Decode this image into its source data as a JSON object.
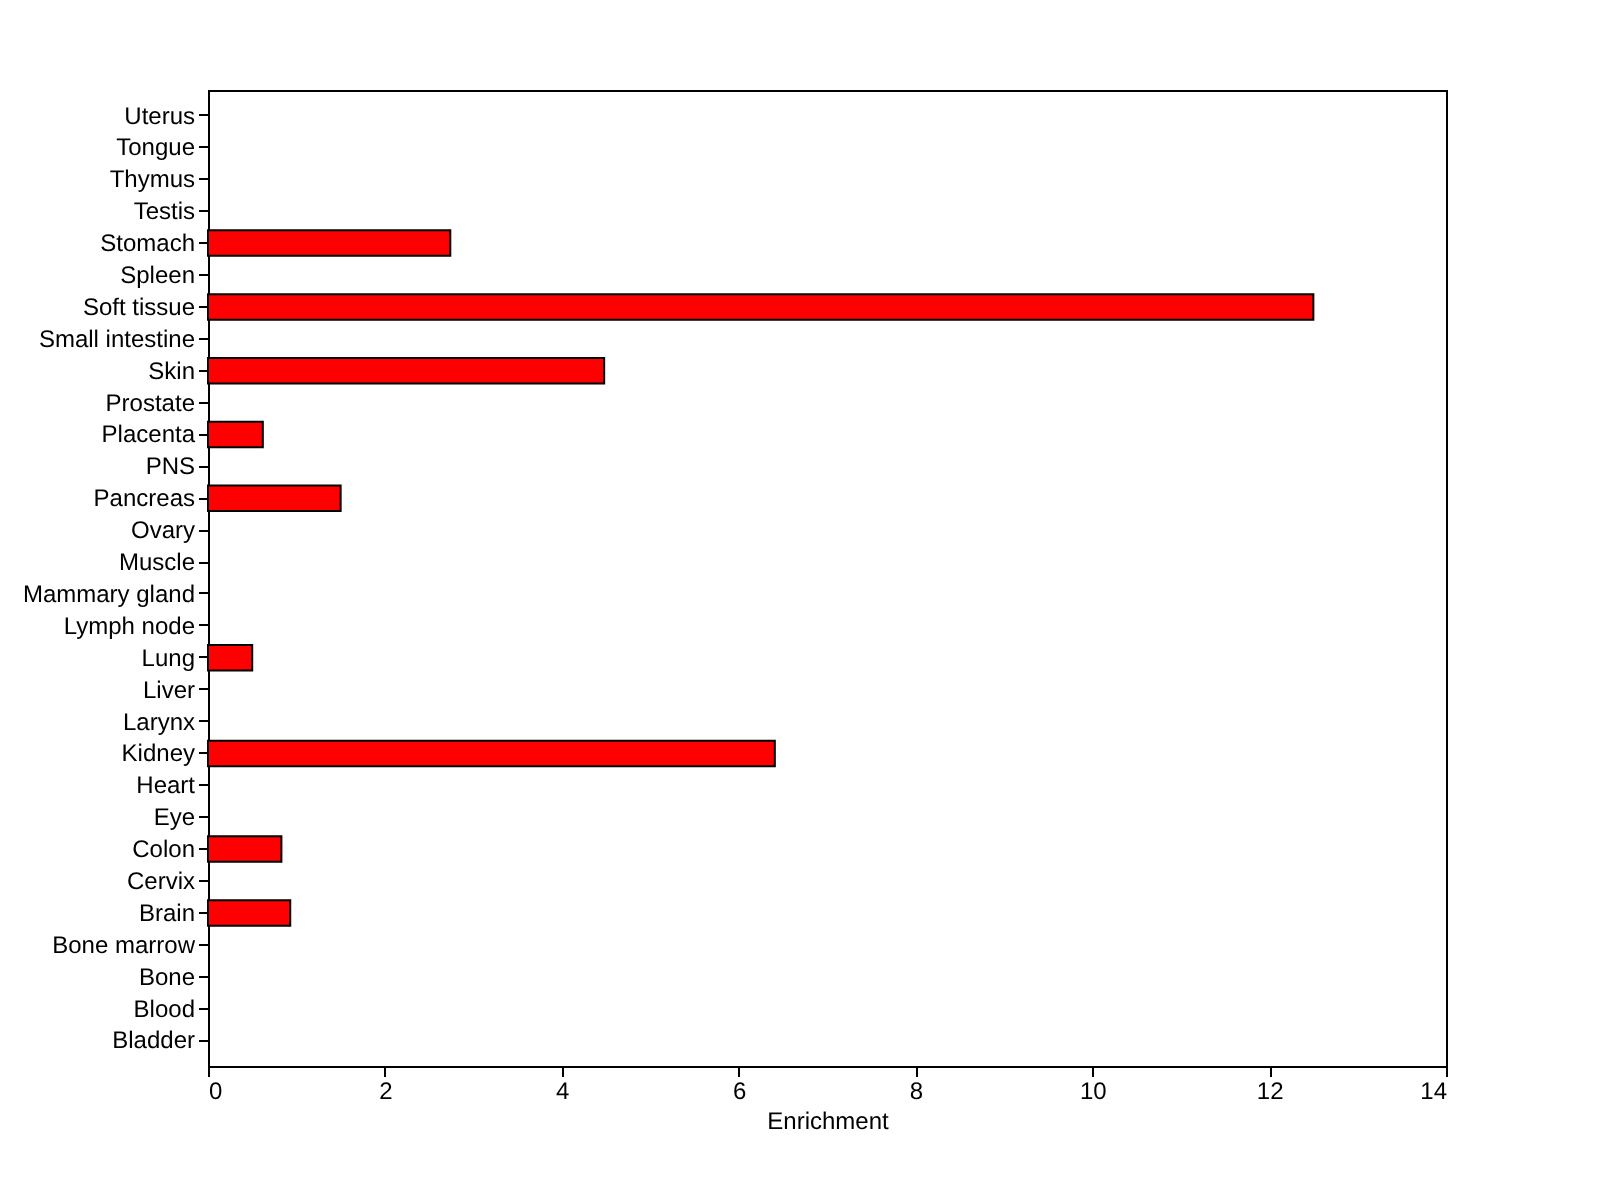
{
  "chart_data": {
    "type": "bar",
    "orientation": "horizontal",
    "xlabel": "Enrichment",
    "categories": [
      "Uterus",
      "Tongue",
      "Thymus",
      "Testis",
      "Stomach",
      "Spleen",
      "Soft tissue",
      "Small intestine",
      "Skin",
      "Prostate",
      "Placenta",
      "PNS",
      "Pancreas",
      "Ovary",
      "Muscle",
      "Mammary gland",
      "Lymph node",
      "Lung",
      "Liver",
      "Larynx",
      "Kidney",
      "Heart",
      "Eye",
      "Colon",
      "Cervix",
      "Brain",
      "Bone marrow",
      "Bone",
      "Blood",
      "Bladder"
    ],
    "values": [
      0,
      0,
      0,
      0,
      2.74,
      0,
      12.5,
      0,
      4.48,
      0,
      0.62,
      0,
      1.5,
      0,
      0,
      0,
      0,
      0.5,
      0,
      0,
      6.41,
      0,
      0,
      0.83,
      0,
      0.93,
      0,
      0,
      0,
      0
    ],
    "color": "#ff0000",
    "xlim": [
      0,
      14
    ],
    "xticks": [
      0,
      2,
      4,
      6,
      8,
      10,
      12,
      14
    ],
    "grid": false
  }
}
